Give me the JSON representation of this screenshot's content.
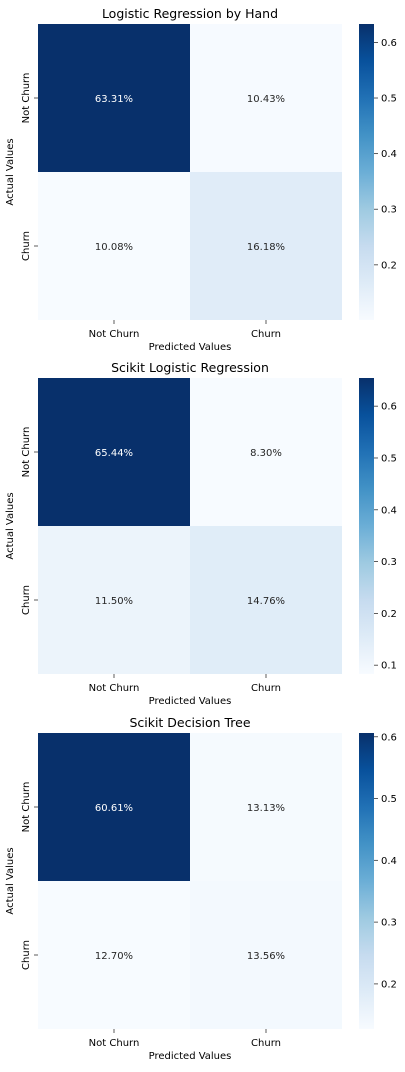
{
  "chart_data": [
    {
      "type": "heatmap",
      "title": "Logistic Regression by Hand",
      "xlabel": "Predicted Values",
      "ylabel": "Actual Values",
      "x_categories": [
        "Not Churn",
        "Churn"
      ],
      "y_categories": [
        "Not Churn",
        "Churn"
      ],
      "values": [
        [
          0.6331,
          0.1043
        ],
        [
          0.1008,
          0.1618
        ]
      ],
      "cell_labels": [
        [
          "63.31%",
          "10.43%"
        ],
        [
          "10.08%",
          "16.18%"
        ]
      ],
      "colormap": "Blues",
      "colorbar": {
        "range": [
          0.1008,
          0.6331
        ],
        "ticks": [
          0.2,
          0.3,
          0.4,
          0.5,
          0.6
        ],
        "tick_labels": [
          "0.2",
          "0.3",
          "0.4",
          "0.5",
          "0.6"
        ]
      }
    },
    {
      "type": "heatmap",
      "title": "Scikit Logistic Regression",
      "xlabel": "Predicted Values",
      "ylabel": "Actual Values",
      "x_categories": [
        "Not Churn",
        "Churn"
      ],
      "y_categories": [
        "Not Churn",
        "Churn"
      ],
      "values": [
        [
          0.6544,
          0.083
        ],
        [
          0.115,
          0.1476
        ]
      ],
      "cell_labels": [
        [
          "65.44%",
          "8.30%"
        ],
        [
          "11.50%",
          "14.76%"
        ]
      ],
      "colormap": "Blues",
      "colorbar": {
        "range": [
          0.083,
          0.6544
        ],
        "ticks": [
          0.1,
          0.2,
          0.3,
          0.4,
          0.5,
          0.6
        ],
        "tick_labels": [
          "0.1",
          "0.2",
          "0.3",
          "0.4",
          "0.5",
          "0.6"
        ]
      }
    },
    {
      "type": "heatmap",
      "title": "Scikit Decision Tree",
      "xlabel": "Predicted Values",
      "ylabel": "Actual Values",
      "x_categories": [
        "Not Churn",
        "Churn"
      ],
      "y_categories": [
        "Not Churn",
        "Churn"
      ],
      "values": [
        [
          0.6061,
          0.1313
        ],
        [
          0.127,
          0.1356
        ]
      ],
      "cell_labels": [
        [
          "60.61%",
          "13.13%"
        ],
        [
          "12.70%",
          "13.56%"
        ]
      ],
      "colormap": "Blues",
      "colorbar": {
        "range": [
          0.127,
          0.6061
        ],
        "ticks": [
          0.2,
          0.3,
          0.4,
          0.5,
          0.6
        ],
        "tick_labels": [
          "0.2",
          "0.3",
          "0.4",
          "0.5",
          "0.6"
        ]
      }
    }
  ]
}
